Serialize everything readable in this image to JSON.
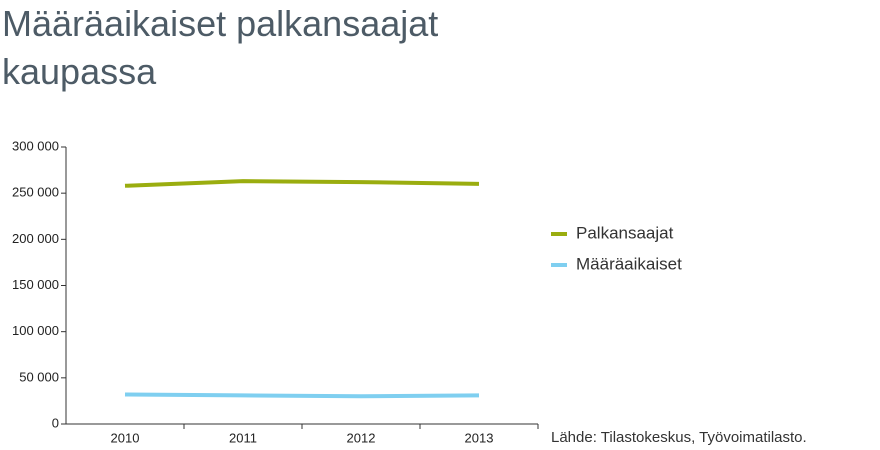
{
  "chart_data": {
    "type": "line",
    "title": "Määräaikaiset palkansaajat kaupassa",
    "categories": [
      "2010",
      "2011",
      "2012",
      "2013"
    ],
    "series": [
      {
        "name": "Palkansaajat",
        "color": "#9aad0f",
        "values": [
          258000,
          263000,
          262000,
          260000
        ]
      },
      {
        "name": "Määräaikaiset",
        "color": "#7fcff0",
        "values": [
          32000,
          31000,
          30000,
          31000
        ]
      }
    ],
    "ylim": [
      0,
      300000
    ],
    "yticks": [
      0,
      {
        "value": 50000,
        "label": "50 000"
      },
      {
        "value": 100000,
        "label": "100 000"
      },
      {
        "value": 150000,
        "label": "150 000"
      },
      {
        "value": 200000,
        "label": "200 000"
      },
      {
        "value": 250000,
        "label": "250 000"
      },
      {
        "value": 300000,
        "label": "300 000"
      }
    ],
    "source": "Lähde: Tilastokeskus, Työvoimatilasto."
  }
}
